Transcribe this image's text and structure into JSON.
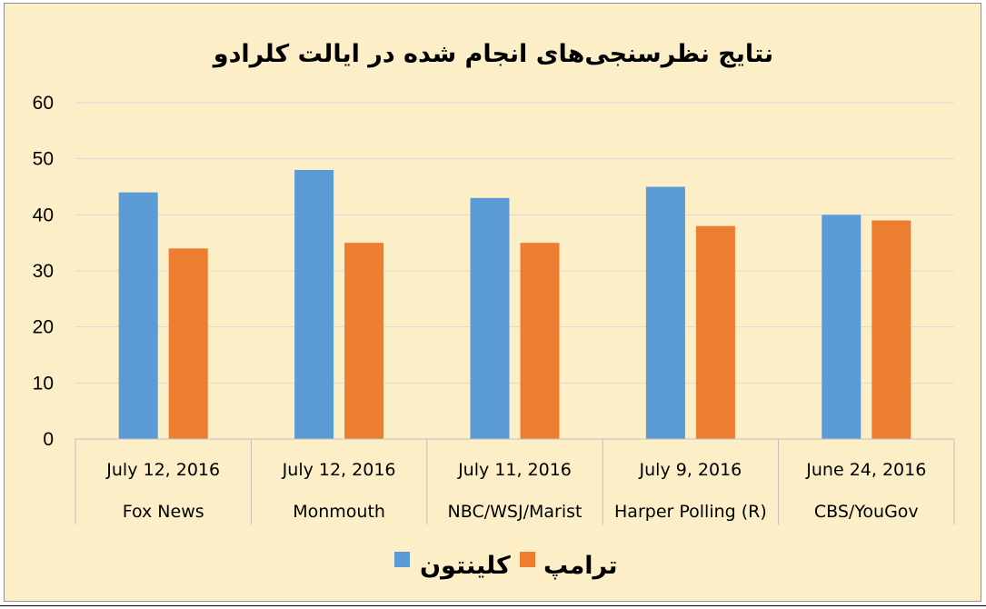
{
  "chart_data": {
    "type": "bar",
    "title": "نتایج نظرسنجی‌های انجام شده در ایالت کلرادو",
    "categories": [
      {
        "date": "July 12, 2016",
        "pollster": "Fox News"
      },
      {
        "date": "July 12, 2016",
        "pollster": "Monmouth"
      },
      {
        "date": "July 11, 2016",
        "pollster": "NBC/WSJ/Marist"
      },
      {
        "date": "July 9, 2016",
        "pollster": "Harper Polling (R)"
      },
      {
        "date": "June 24, 2016",
        "pollster": "CBS/YouGov"
      }
    ],
    "series": [
      {
        "name": "کلینتون",
        "color": "#5b9bd5",
        "values": [
          44,
          48,
          43,
          45,
          40
        ]
      },
      {
        "name": "ترامپ",
        "color": "#ed7d31",
        "values": [
          34,
          35,
          35,
          38,
          39
        ]
      }
    ],
    "ylim": [
      0,
      60
    ],
    "yticks": [
      0,
      10,
      20,
      30,
      40,
      50,
      60
    ],
    "grid": true,
    "legend_position": "bottom"
  }
}
